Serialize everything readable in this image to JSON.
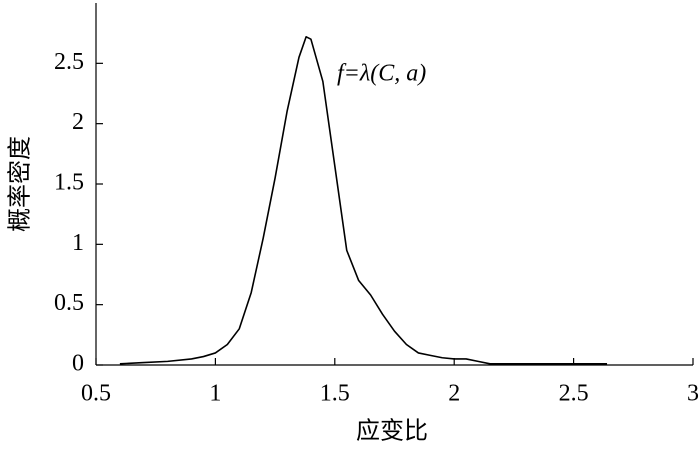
{
  "chart_data": {
    "type": "line",
    "xlabel": "应变比",
    "ylabel": "概率密度",
    "annotation": "f=λ(C, a)",
    "x": [
      0.6,
      0.7,
      0.8,
      0.9,
      0.95,
      1.0,
      1.05,
      1.1,
      1.15,
      1.2,
      1.25,
      1.3,
      1.35,
      1.38,
      1.4,
      1.45,
      1.5,
      1.55,
      1.6,
      1.65,
      1.7,
      1.75,
      1.8,
      1.85,
      1.9,
      1.95,
      2.0,
      2.05,
      2.1,
      2.15,
      2.3,
      2.5,
      2.64
    ],
    "series": [
      {
        "color": "#000000",
        "values": [
          0.01,
          0.02,
          0.03,
          0.05,
          0.07,
          0.1,
          0.17,
          0.3,
          0.6,
          1.05,
          1.55,
          2.1,
          2.55,
          2.72,
          2.7,
          2.35,
          1.65,
          0.95,
          0.7,
          0.58,
          0.42,
          0.28,
          0.17,
          0.1,
          0.08,
          0.06,
          0.05,
          0.05,
          0.03,
          0.01,
          0.01,
          0.01,
          0.01
        ]
      }
    ],
    "xlim": [
      0.5,
      3
    ],
    "ylim": [
      0,
      3
    ],
    "xticks": [
      0.5,
      1,
      1.5,
      2,
      2.5,
      3
    ],
    "yticks": [
      0,
      0.5,
      1,
      1.5,
      2,
      2.5
    ],
    "grid": false
  }
}
